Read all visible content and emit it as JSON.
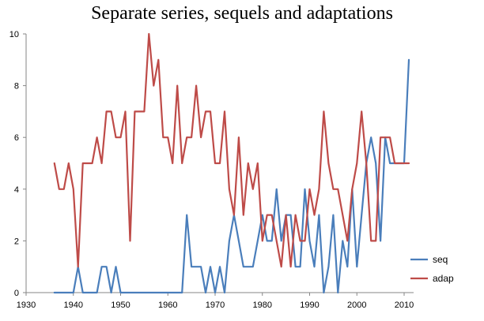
{
  "chart_data": {
    "type": "line",
    "title": "Separate series, sequels and adaptations",
    "xlabel": "",
    "ylabel": "",
    "xlim": [
      1930,
      2010
    ],
    "ylim": [
      0,
      10
    ],
    "x_ticks": [
      1930,
      1940,
      1950,
      1960,
      1970,
      1980,
      1990,
      2000,
      2010
    ],
    "y_ticks": [
      0,
      2,
      4,
      6,
      8,
      10
    ],
    "grid": false,
    "legend_position": "right",
    "x": [
      1936,
      1937,
      1938,
      1939,
      1940,
      1941,
      1942,
      1943,
      1944,
      1945,
      1946,
      1947,
      1948,
      1949,
      1950,
      1951,
      1952,
      1953,
      1954,
      1955,
      1956,
      1957,
      1958,
      1959,
      1960,
      1961,
      1962,
      1963,
      1964,
      1965,
      1966,
      1967,
      1968,
      1969,
      1970,
      1971,
      1972,
      1973,
      1974,
      1975,
      1976,
      1977,
      1978,
      1979,
      1980,
      1981,
      1982,
      1983,
      1984,
      1985,
      1986,
      1987,
      1988,
      1989,
      1990,
      1991,
      1992,
      1993,
      1994,
      1995,
      1996,
      1997,
      1998,
      1999,
      2000,
      2001,
      2002,
      2003,
      2004,
      2005,
      2006,
      2007,
      2008,
      2009,
      2010,
      2011
    ],
    "series": [
      {
        "name": "seq",
        "color": "#4a7ebb",
        "values": [
          0,
          0,
          0,
          0,
          0,
          1,
          0,
          0,
          0,
          0,
          1,
          1,
          0,
          1,
          0,
          0,
          0,
          0,
          0,
          0,
          0,
          0,
          0,
          0,
          0,
          0,
          0,
          0,
          3,
          1,
          1,
          1,
          0,
          1,
          0,
          1,
          0,
          2,
          3,
          2,
          1,
          1,
          1,
          2,
          3,
          2,
          2,
          4,
          2,
          3,
          3,
          1,
          1,
          4,
          2,
          1,
          3,
          0,
          1,
          3,
          0,
          2,
          1,
          4,
          1,
          3,
          5,
          6,
          5,
          2,
          6,
          5,
          5,
          5,
          5,
          9
        ]
      },
      {
        "name": "adap",
        "color": "#be4b48",
        "values": [
          5,
          4,
          4,
          5,
          4,
          1,
          5,
          5,
          5,
          6,
          5,
          7,
          7,
          6,
          6,
          7,
          2,
          7,
          7,
          7,
          10,
          8,
          9,
          6,
          6,
          5,
          8,
          5,
          6,
          6,
          8,
          6,
          7,
          7,
          5,
          5,
          7,
          4,
          3,
          6,
          3,
          5,
          4,
          5,
          2,
          3,
          3,
          2,
          1,
          3,
          1,
          3,
          2,
          2,
          4,
          3,
          4,
          7,
          5,
          4,
          4,
          3,
          2,
          4,
          5,
          7,
          5,
          2,
          2,
          6,
          6,
          6,
          5,
          5,
          5,
          5
        ]
      }
    ]
  }
}
